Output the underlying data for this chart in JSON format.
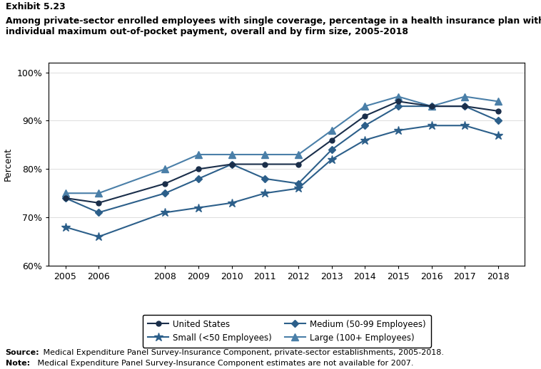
{
  "title_exhibit": "Exhibit 5.23",
  "title_main": "Among private-sector enrolled employees with single coverage, percentage in a health insurance plan with an\nindividual maximum out-of-pocket payment, overall and by firm size, 2005-2018",
  "years": [
    2005,
    2006,
    2008,
    2009,
    2010,
    2011,
    2012,
    2013,
    2014,
    2015,
    2016,
    2017,
    2018
  ],
  "united_states": [
    74,
    73,
    77,
    80,
    81,
    81,
    81,
    86,
    91,
    94,
    93,
    93,
    92
  ],
  "small": [
    68,
    66,
    71,
    72,
    73,
    75,
    76,
    82,
    86,
    88,
    89,
    89,
    87
  ],
  "medium": [
    74,
    71,
    75,
    78,
    81,
    78,
    77,
    84,
    89,
    93,
    93,
    93,
    90
  ],
  "large": [
    75,
    75,
    80,
    83,
    83,
    83,
    83,
    88,
    93,
    95,
    93,
    95,
    94
  ],
  "ylabel": "Percent",
  "ylim": [
    60,
    102
  ],
  "yticks": [
    60,
    70,
    80,
    90,
    100
  ],
  "ytick_labels": [
    "60%",
    "70%",
    "80%",
    "90%",
    "100%"
  ],
  "legend_labels": [
    "United States",
    "Small (<50 Employees)",
    "Medium (50-99 Employees)",
    "Large (100+ Employees)"
  ],
  "source_bold": "Source:",
  "source_text": " Medical Expenditure Panel Survey-Insurance Component, private-sector establishments, 2005-2018.",
  "note_bold": "Note:",
  "note_text": " Medical Expenditure Panel Survey-Insurance Component estimates are not available for 2007.",
  "background_color": "#ffffff",
  "color_us": "#1a2e4a",
  "color_small": "#2c5f8a",
  "color_medium": "#2c5f8a",
  "color_large": "#4a7fa8"
}
